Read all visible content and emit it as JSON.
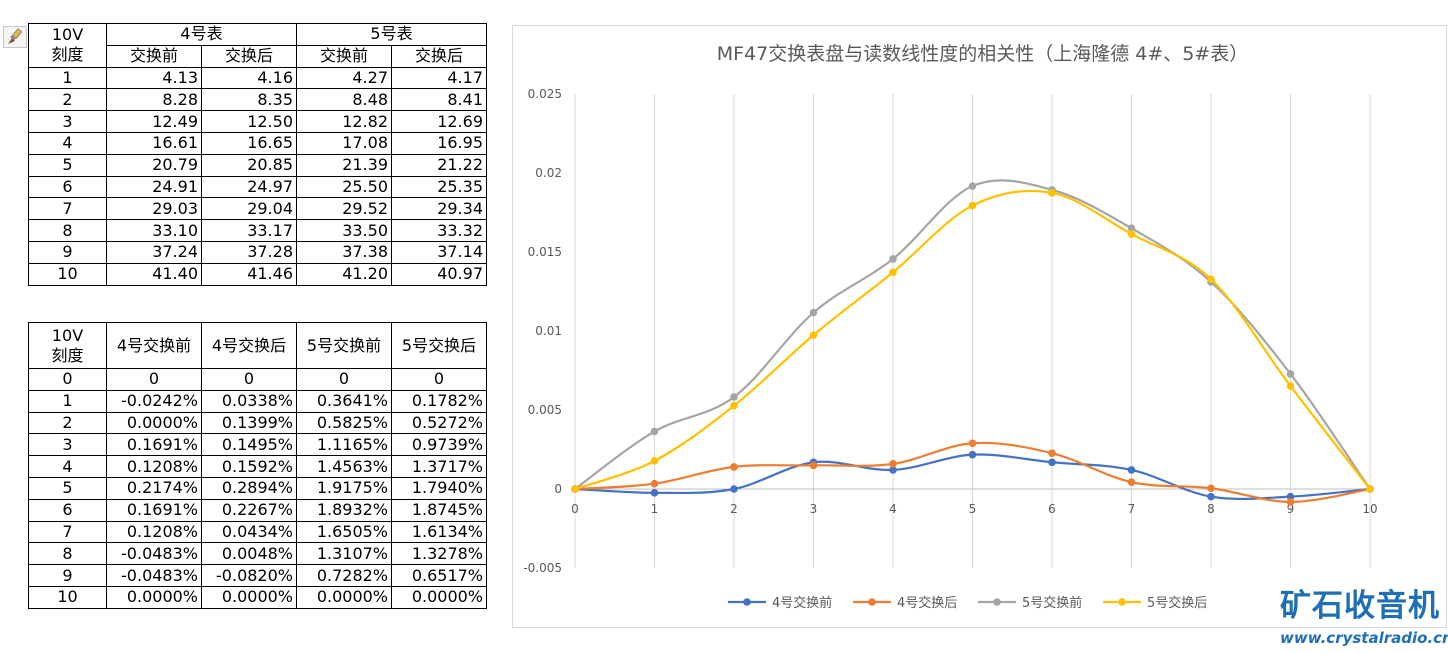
{
  "table1": {
    "header_col0": [
      "10V",
      "刻度"
    ],
    "group_headers": [
      "4号表",
      "5号表"
    ],
    "sub_headers": [
      "交换前",
      "交换后",
      "交换前",
      "交换后"
    ],
    "rows": [
      [
        "1",
        "4.13",
        "4.16",
        "4.27",
        "4.17"
      ],
      [
        "2",
        "8.28",
        "8.35",
        "8.48",
        "8.41"
      ],
      [
        "3",
        "12.49",
        "12.50",
        "12.82",
        "12.69"
      ],
      [
        "4",
        "16.61",
        "16.65",
        "17.08",
        "16.95"
      ],
      [
        "5",
        "20.79",
        "20.85",
        "21.39",
        "21.22"
      ],
      [
        "6",
        "24.91",
        "24.97",
        "25.50",
        "25.35"
      ],
      [
        "7",
        "29.03",
        "29.04",
        "29.52",
        "29.34"
      ],
      [
        "8",
        "33.10",
        "33.17",
        "33.50",
        "33.32"
      ],
      [
        "9",
        "37.24",
        "37.28",
        "37.38",
        "37.14"
      ],
      [
        "10",
        "41.40",
        "41.46",
        "41.20",
        "40.97"
      ]
    ]
  },
  "table2": {
    "header_col0": [
      "10V",
      "刻度"
    ],
    "headers": [
      "4号交换前",
      "4号交换后",
      "5号交换前",
      "5号交换后"
    ],
    "rows": [
      [
        "0",
        "0",
        "0",
        "0",
        "0"
      ],
      [
        "1",
        "-0.0242%",
        "0.0338%",
        "0.3641%",
        "0.1782%"
      ],
      [
        "2",
        "0.0000%",
        "0.1399%",
        "0.5825%",
        "0.5272%"
      ],
      [
        "3",
        "0.1691%",
        "0.1495%",
        "1.1165%",
        "0.9739%"
      ],
      [
        "4",
        "0.1208%",
        "0.1592%",
        "1.4563%",
        "1.3717%"
      ],
      [
        "5",
        "0.2174%",
        "0.2894%",
        "1.9175%",
        "1.7940%"
      ],
      [
        "6",
        "0.1691%",
        "0.2267%",
        "1.8932%",
        "1.8745%"
      ],
      [
        "7",
        "0.1208%",
        "0.0434%",
        "1.6505%",
        "1.6134%"
      ],
      [
        "8",
        "-0.0483%",
        "0.0048%",
        "1.3107%",
        "1.3278%"
      ],
      [
        "9",
        "-0.0483%",
        "-0.0820%",
        "0.7282%",
        "0.6517%"
      ],
      [
        "10",
        "0.0000%",
        "0.0000%",
        "0.0000%",
        "0.0000%"
      ]
    ]
  },
  "chart_data": {
    "type": "line",
    "title": "MF47交换表盘与读数线性度的相关性（上海隆德 4#、5#表）",
    "x": [
      0,
      1,
      2,
      3,
      4,
      5,
      6,
      7,
      8,
      9,
      10
    ],
    "x_tick_labels": [
      "0",
      "1",
      "2",
      "3",
      "4",
      "5",
      "6",
      "7",
      "8",
      "9",
      "10"
    ],
    "y_tick_labels": [
      "0.025",
      "0.02",
      "0.015",
      "0.01",
      "0.005",
      "0",
      "-0.005"
    ],
    "y_ticks": [
      0.025,
      0.02,
      0.015,
      0.01,
      0.005,
      0,
      -0.005
    ],
    "ylim": [
      -0.005,
      0.025
    ],
    "xlim": [
      0,
      10
    ],
    "grid": "vertical",
    "smooth": true,
    "legend_position": "bottom",
    "series": [
      {
        "name": "4号交换前",
        "color": "#4472c4",
        "values": [
          0,
          -0.000242,
          0.0,
          0.001691,
          0.001208,
          0.002174,
          0.001691,
          0.001208,
          -0.000483,
          -0.000483,
          0
        ]
      },
      {
        "name": "4号交换后",
        "color": "#ed7d31",
        "values": [
          0,
          0.000338,
          0.001399,
          0.001495,
          0.001592,
          0.002894,
          0.002267,
          0.000434,
          4.8e-05,
          -0.00082,
          0
        ]
      },
      {
        "name": "5号交换前",
        "color": "#a5a5a5",
        "values": [
          0,
          0.003641,
          0.005825,
          0.011165,
          0.014563,
          0.019175,
          0.018932,
          0.016505,
          0.013107,
          0.007282,
          0
        ]
      },
      {
        "name": "5号交换后",
        "color": "#ffc000",
        "values": [
          0,
          0.001782,
          0.005272,
          0.009739,
          0.013717,
          0.01794,
          0.018745,
          0.016134,
          0.013278,
          0.006517,
          0
        ]
      }
    ]
  },
  "brand": {
    "name": "矿石收音机",
    "url": "www.crystalradio.cn",
    "color": "#1f6fb5"
  },
  "icons": {
    "format_painter": "paintbrush-icon"
  }
}
